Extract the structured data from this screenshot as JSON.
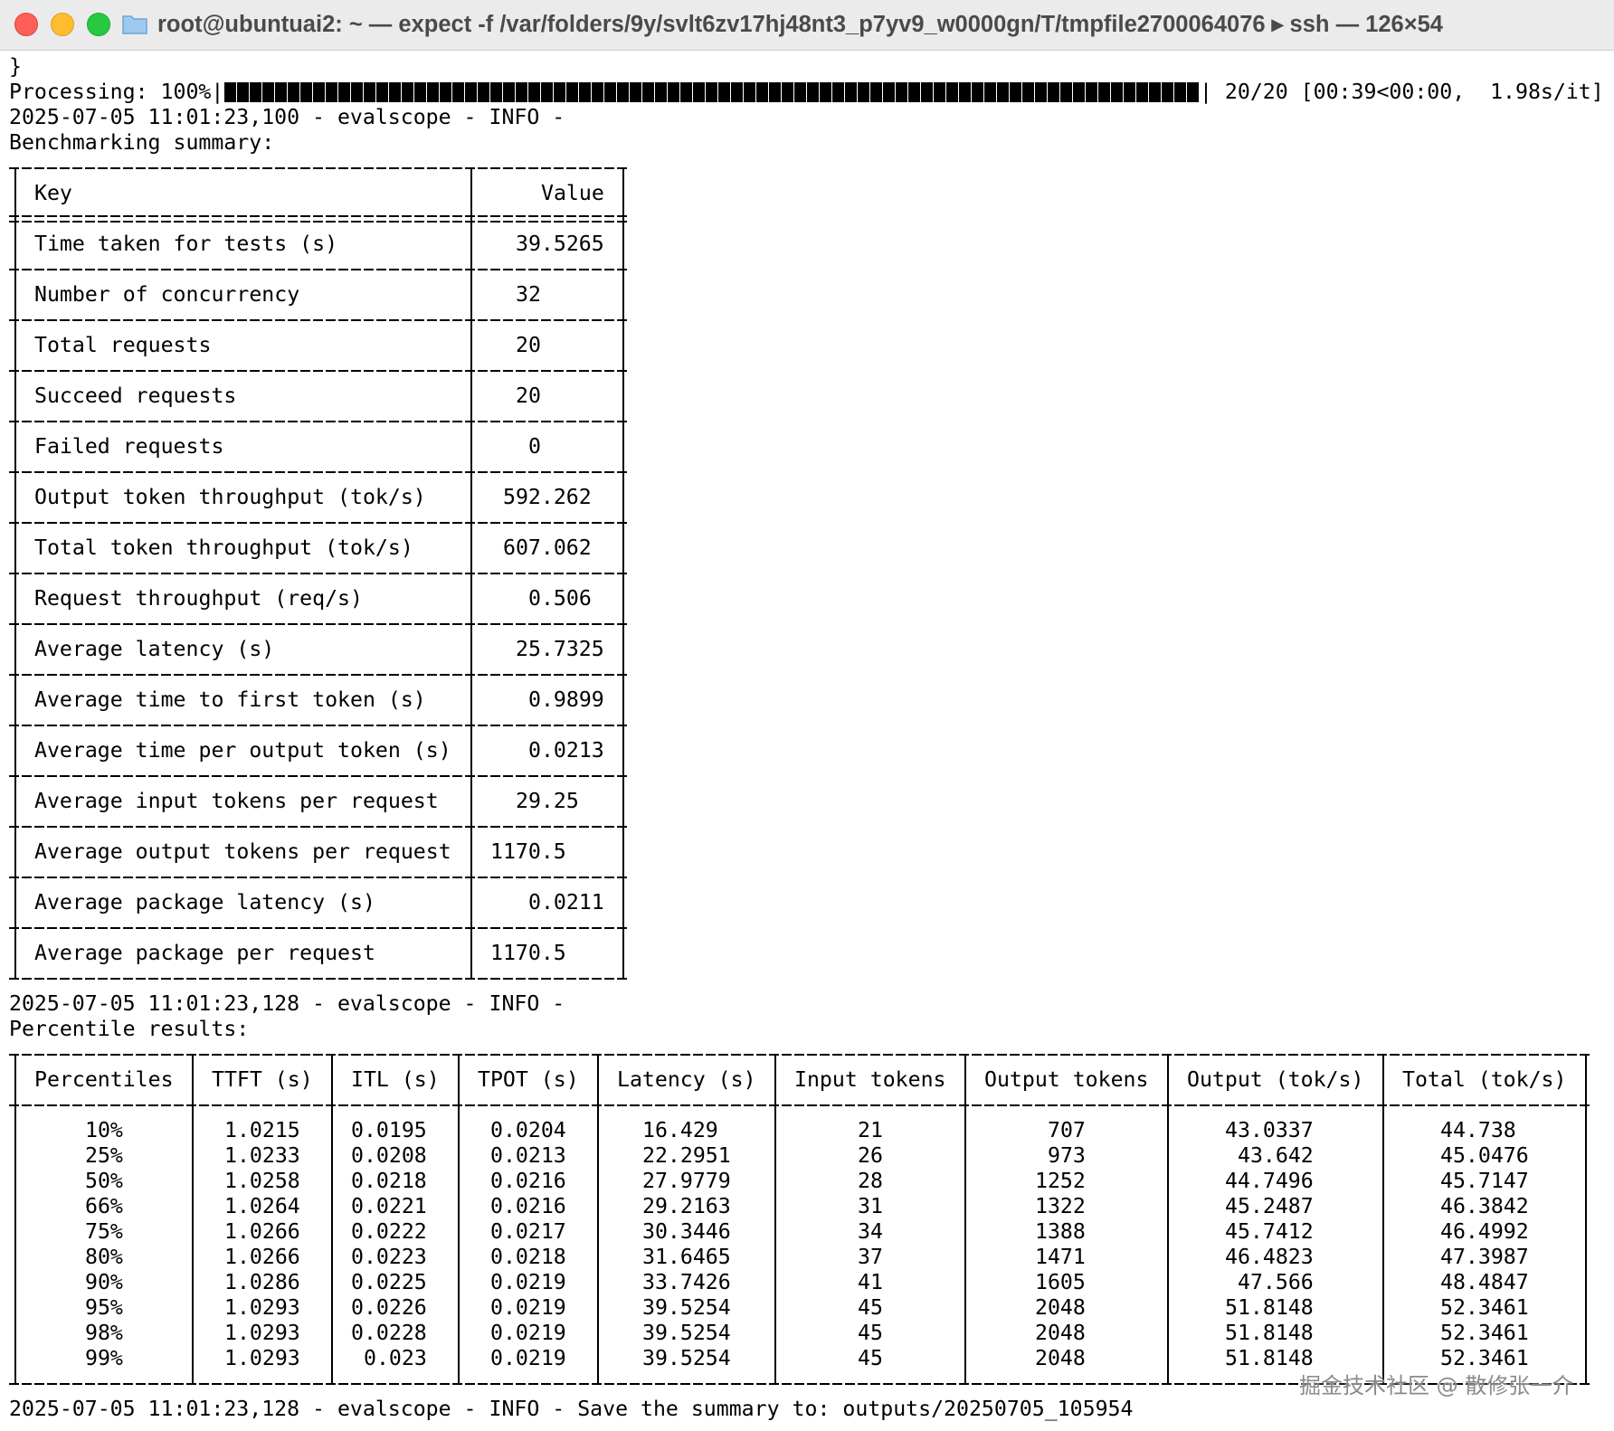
{
  "window": {
    "title": "root@ubuntuai2: ~ — expect -f /var/folders/9y/svlt6zv17hj48nt3_p7yv9_w0000gn/T/tmpfile2700064076 ▸ ssh — 126×54"
  },
  "terminal": {
    "brace": "}",
    "progress": {
      "label": "Processing: 100%|",
      "stats": "| 20/20 [00:39<00:00,  1.98s/it]"
    },
    "log_summary": "2025-07-05 11:01:23,100 - evalscope - INFO -",
    "summary_heading": "Benchmarking summary:",
    "summary_table": {
      "header": [
        "Key",
        "Value"
      ],
      "rows": [
        [
          "Time taken for tests (s)",
          39.5265
        ],
        [
          "Number of concurrency",
          32
        ],
        [
          "Total requests",
          20
        ],
        [
          "Succeed requests",
          20
        ],
        [
          "Failed requests",
          0
        ],
        [
          "Output token throughput (tok/s)",
          592.262
        ],
        [
          "Total token throughput (tok/s)",
          607.062
        ],
        [
          "Request throughput (req/s)",
          0.506
        ],
        [
          "Average latency (s)",
          25.7325
        ],
        [
          "Average time to first token (s)",
          0.9899
        ],
        [
          "Average time per output token (s)",
          0.0213
        ],
        [
          "Average input tokens per request",
          29.25
        ],
        [
          "Average output tokens per request",
          1170.5
        ],
        [
          "Average package latency (s)",
          0.0211
        ],
        [
          "Average package per request",
          1170.5
        ]
      ]
    },
    "log_percentile": "2025-07-05 11:01:23,128 - evalscope - INFO -",
    "percentile_heading": "Percentile results:",
    "percentile_table": {
      "header": [
        "Percentiles",
        "TTFT (s)",
        "ITL (s)",
        "TPOT (s)",
        "Latency (s)",
        "Input tokens",
        "Output tokens",
        "Output (tok/s)",
        "Total (tok/s)"
      ],
      "rows": [
        [
          "10%",
          1.0215,
          0.0195,
          0.0204,
          16.429,
          21,
          707,
          43.0337,
          44.738
        ],
        [
          "25%",
          1.0233,
          0.0208,
          0.0213,
          22.2951,
          26,
          973,
          43.642,
          45.0476
        ],
        [
          "50%",
          1.0258,
          0.0218,
          0.0216,
          27.9779,
          28,
          1252,
          44.7496,
          45.7147
        ],
        [
          "66%",
          1.0264,
          0.0221,
          0.0216,
          29.2163,
          31,
          1322,
          45.2487,
          46.3842
        ],
        [
          "75%",
          1.0266,
          0.0222,
          0.0217,
          30.3446,
          34,
          1388,
          45.7412,
          46.4992
        ],
        [
          "80%",
          1.0266,
          0.0223,
          0.0218,
          31.6465,
          37,
          1471,
          46.4823,
          47.3987
        ],
        [
          "90%",
          1.0286,
          0.0225,
          0.0219,
          33.7426,
          41,
          1605,
          47.566,
          48.4847
        ],
        [
          "95%",
          1.0293,
          0.0226,
          0.0219,
          39.5254,
          45,
          2048,
          51.8148,
          52.3461
        ],
        [
          "98%",
          1.0293,
          0.0228,
          0.0219,
          39.5254,
          45,
          2048,
          51.8148,
          52.3461
        ],
        [
          "99%",
          1.0293,
          0.023,
          0.0219,
          39.5254,
          45,
          2048,
          51.8148,
          52.3461
        ]
      ]
    },
    "log_save": "2025-07-05 11:01:23,128 - evalscope - INFO - Save the summary to: outputs/20250705_105954"
  },
  "watermark": "掘金技术社区 @ 散修张一介"
}
